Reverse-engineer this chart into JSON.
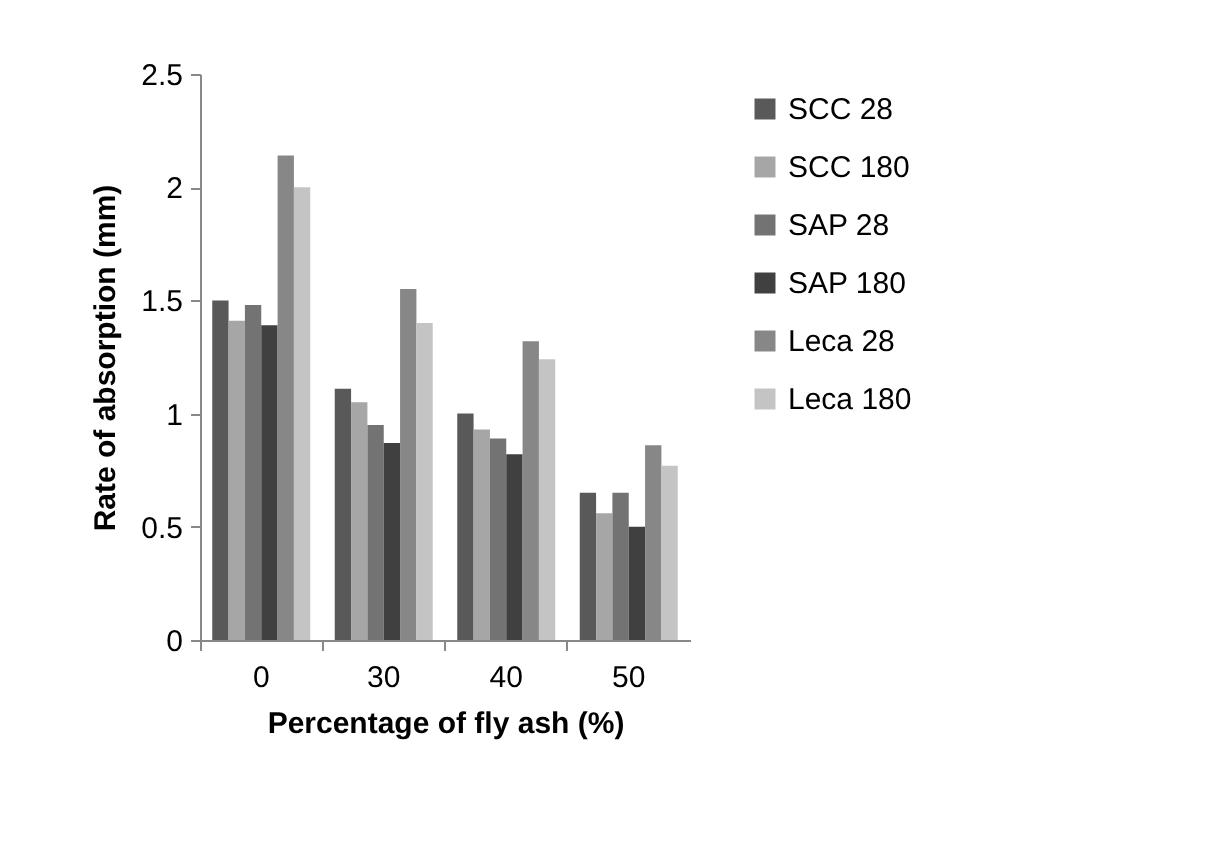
{
  "chart_data": {
    "type": "bar",
    "xlabel": "Percentage of fly ash (%)",
    "ylabel": "Rate of absorption (mm)",
    "categories": [
      "0",
      "30",
      "40",
      "50"
    ],
    "series": [
      {
        "name": "SCC 28",
        "color": "#595959",
        "values": [
          1.5,
          1.11,
          1.0,
          0.65
        ]
      },
      {
        "name": "SCC 180",
        "color": "#a6a6a6",
        "values": [
          1.41,
          1.05,
          0.93,
          0.56
        ]
      },
      {
        "name": "SAP 28",
        "color": "#737373",
        "values": [
          1.48,
          0.95,
          0.89,
          0.65
        ]
      },
      {
        "name": "SAP 180",
        "color": "#404040",
        "values": [
          1.39,
          0.87,
          0.82,
          0.5
        ]
      },
      {
        "name": "Leca 28",
        "color": "#878787",
        "values": [
          2.14,
          1.55,
          1.32,
          0.86
        ]
      },
      {
        "name": "Leca 180",
        "color": "#c4c4c4",
        "values": [
          2.0,
          1.4,
          1.24,
          0.77
        ]
      }
    ],
    "ylim": [
      0,
      2.5
    ],
    "yticks": [
      0,
      0.5,
      1,
      1.5,
      2,
      2.5
    ],
    "grid": false,
    "legend": "right"
  }
}
